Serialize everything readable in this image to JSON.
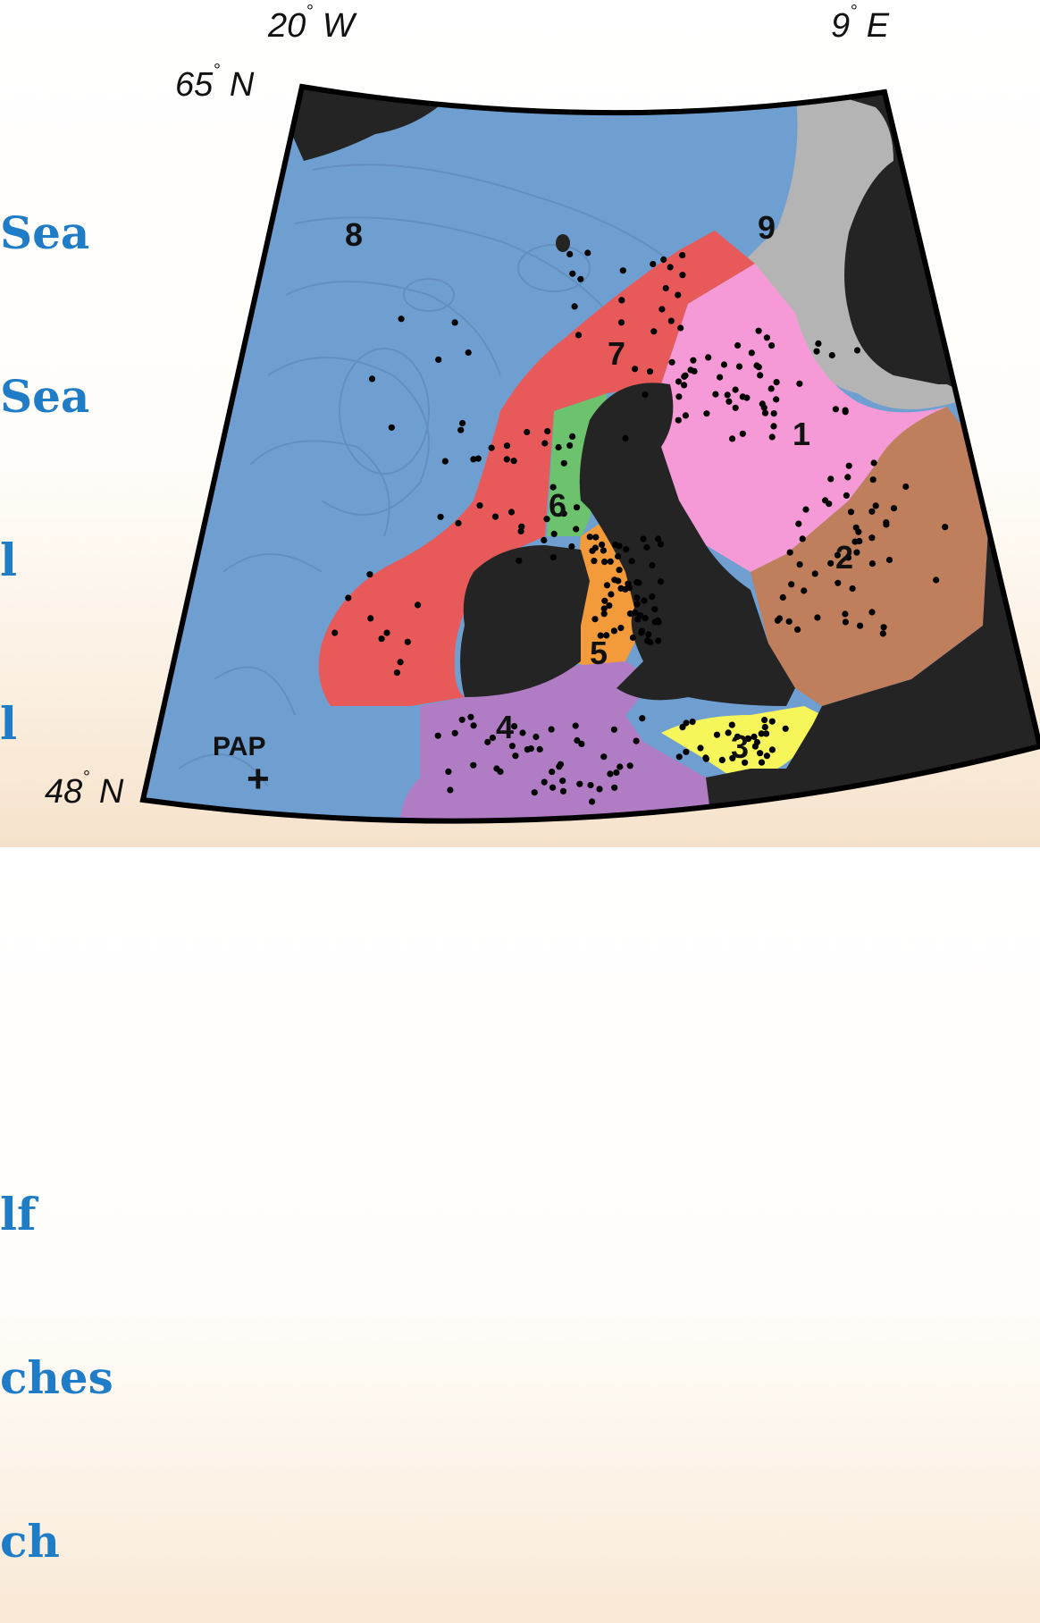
{
  "legend_lines": [
    "Sea",
    "Sea",
    "l",
    "l",
    "",
    "",
    "lf",
    "ches",
    "ch"
  ],
  "coordinates": {
    "lon_west": {
      "value": "20",
      "deg": "°",
      "hemi": "W"
    },
    "lon_east": {
      "value": "9",
      "deg": "°",
      "hemi": "E"
    },
    "lat_north": {
      "value": "65",
      "deg": "°",
      "hemi": "N"
    },
    "lat_south": {
      "value": "48",
      "deg": "°",
      "hemi": "N"
    }
  },
  "regions": [
    {
      "id": "1",
      "color": "#f59ad6"
    },
    {
      "id": "2",
      "color": "#bf7f5c"
    },
    {
      "id": "3",
      "color": "#f6f55a"
    },
    {
      "id": "4",
      "color": "#b07cc4"
    },
    {
      "id": "5",
      "color": "#f39a3a"
    },
    {
      "id": "6",
      "color": "#6cc26d"
    },
    {
      "id": "7",
      "color": "#e85a5a"
    },
    {
      "id": "8",
      "color": "#6f9fd0"
    },
    {
      "id": "9",
      "color": "#b4b4b4"
    }
  ],
  "station": {
    "label": "PAP",
    "marker": "+"
  },
  "colors": {
    "land": "#242424",
    "legend_text": "#1f7cc6",
    "sample_dots": "#000000"
  }
}
